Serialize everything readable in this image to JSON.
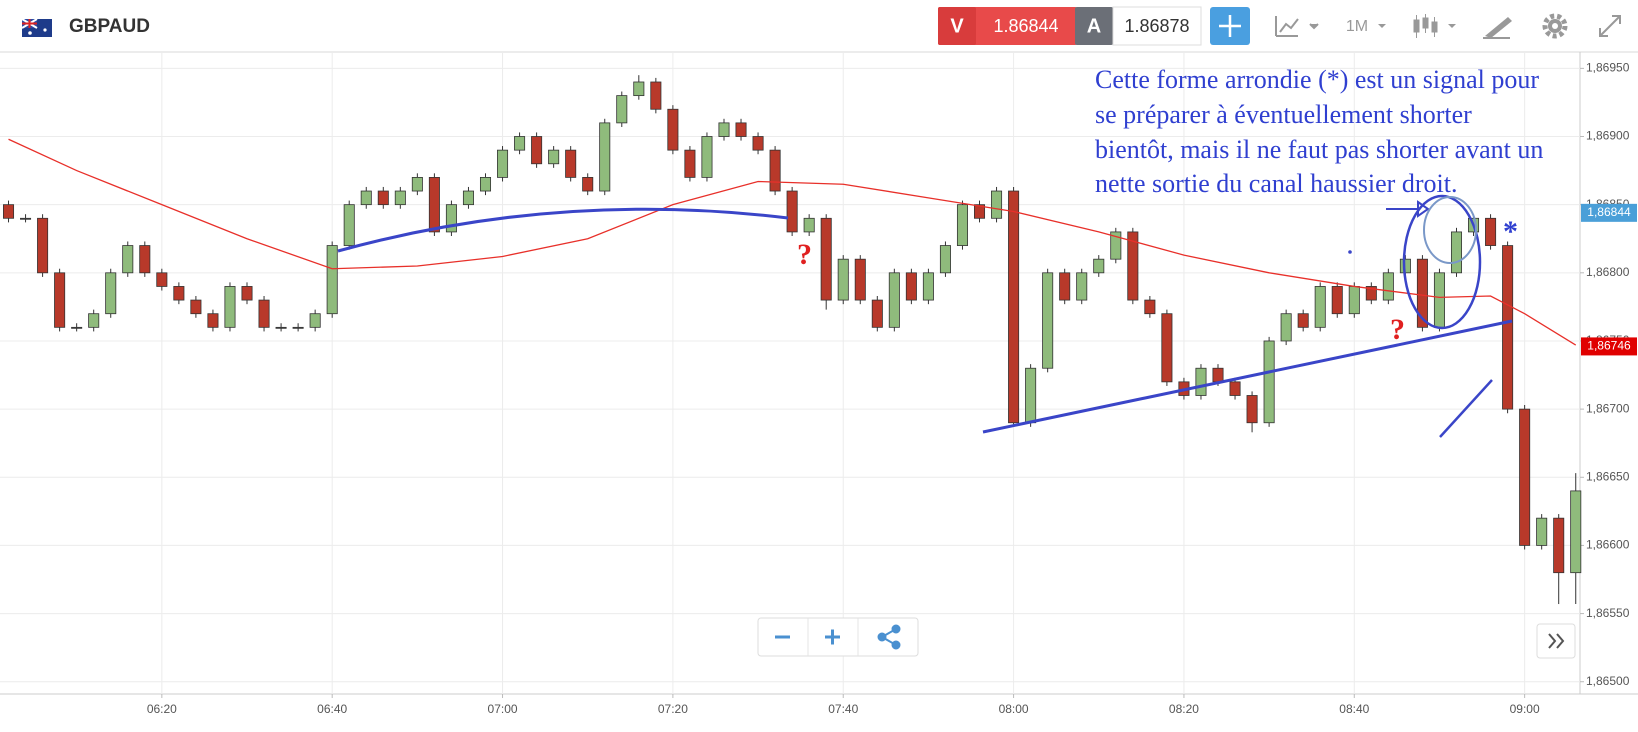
{
  "header": {
    "symbol": "GBPAUD",
    "sell_label": "V",
    "sell_price": 1.86844,
    "buy_label": "A",
    "buy_price": 1.86878,
    "timeframe": "1M"
  },
  "chart_data": {
    "type": "candlestick",
    "x": [
      362,
      364,
      366,
      368,
      370,
      372,
      374,
      376,
      378,
      380,
      382,
      384,
      386,
      388,
      390,
      392,
      394,
      396,
      398,
      400,
      402,
      404,
      406,
      408,
      410,
      412,
      414,
      416,
      418,
      420,
      422,
      424,
      426,
      428,
      430,
      432,
      434,
      436,
      438,
      440,
      442,
      444,
      446,
      448,
      450,
      452,
      454,
      456,
      458,
      460,
      462,
      464,
      466,
      468,
      470,
      472,
      474,
      476,
      478,
      480,
      482,
      484,
      486,
      488,
      490,
      492,
      494,
      496,
      498,
      500,
      502,
      504,
      506,
      508,
      510,
      512,
      514,
      516,
      518,
      520,
      522,
      524,
      526,
      528,
      530,
      532,
      534,
      536,
      538,
      540,
      542,
      544,
      546
    ],
    "open": [
      1.8685,
      1.8684,
      1.8684,
      1.868,
      1.8676,
      1.8676,
      1.8677,
      1.868,
      1.8682,
      1.868,
      1.8679,
      1.8678,
      1.8677,
      1.8676,
      1.8679,
      1.8678,
      1.8676,
      1.8676,
      1.8676,
      1.8677,
      1.8682,
      1.8685,
      1.8686,
      1.8685,
      1.8686,
      1.8687,
      1.8683,
      1.8685,
      1.8686,
      1.8687,
      1.8689,
      1.869,
      1.8688,
      1.8689,
      1.8687,
      1.8686,
      1.8691,
      1.8693,
      1.8694,
      1.8692,
      1.8689,
      1.8687,
      1.869,
      1.8691,
      1.869,
      1.8689,
      1.8686,
      1.8683,
      1.8684,
      1.8678,
      1.8681,
      1.8678,
      1.8676,
      1.868,
      1.8678,
      1.868,
      1.8682,
      1.8685,
      1.8684,
      1.8686,
      1.8669,
      1.8673,
      1.868,
      1.8678,
      1.868,
      1.8681,
      1.8683,
      1.8678,
      1.8677,
      1.8672,
      1.8671,
      1.8673,
      1.8672,
      1.8671,
      1.8669,
      1.8675,
      1.8677,
      1.8676,
      1.8679,
      1.8677,
      1.8679,
      1.8678,
      1.868,
      1.8681,
      1.8676,
      1.868,
      1.8683,
      1.8684,
      1.8682,
      1.867,
      1.866,
      1.8662,
      1.8658
    ],
    "high": [
      1.86853,
      1.86843,
      1.86843,
      1.86803,
      1.86763,
      1.86773,
      1.86803,
      1.86823,
      1.86823,
      1.86803,
      1.86793,
      1.86783,
      1.86773,
      1.86793,
      1.86793,
      1.86783,
      1.86763,
      1.86763,
      1.86773,
      1.86823,
      1.86853,
      1.86863,
      1.86863,
      1.86863,
      1.86873,
      1.86873,
      1.86853,
      1.86863,
      1.86873,
      1.86893,
      1.86903,
      1.86903,
      1.86893,
      1.86893,
      1.86873,
      1.86913,
      1.86933,
      1.86945,
      1.86943,
      1.86923,
      1.86893,
      1.86903,
      1.86913,
      1.86913,
      1.86903,
      1.86893,
      1.86863,
      1.86843,
      1.86843,
      1.86813,
      1.86813,
      1.86783,
      1.86803,
      1.86803,
      1.86803,
      1.86823,
      1.86853,
      1.86853,
      1.86863,
      1.86863,
      1.86733,
      1.86803,
      1.86803,
      1.86803,
      1.86813,
      1.86833,
      1.86833,
      1.86783,
      1.86773,
      1.86723,
      1.86733,
      1.86733,
      1.86723,
      1.86713,
      1.86753,
      1.86773,
      1.86773,
      1.86793,
      1.86793,
      1.86793,
      1.86793,
      1.86803,
      1.86813,
      1.86813,
      1.86803,
      1.86833,
      1.86843,
      1.86843,
      1.86823,
      1.86703,
      1.86623,
      1.86623,
      1.86653
    ],
    "low": [
      1.86837,
      1.86837,
      1.86797,
      1.86757,
      1.86757,
      1.86757,
      1.86767,
      1.86797,
      1.86797,
      1.86787,
      1.86777,
      1.86767,
      1.86757,
      1.86757,
      1.86777,
      1.86757,
      1.86757,
      1.86757,
      1.86757,
      1.86767,
      1.86817,
      1.86847,
      1.86847,
      1.86847,
      1.86857,
      1.86827,
      1.86827,
      1.86847,
      1.86857,
      1.86867,
      1.86887,
      1.86877,
      1.86877,
      1.86867,
      1.86857,
      1.86857,
      1.86907,
      1.86927,
      1.86917,
      1.86887,
      1.86867,
      1.86867,
      1.86897,
      1.86897,
      1.86887,
      1.86857,
      1.86827,
      1.86827,
      1.86773,
      1.86777,
      1.86777,
      1.86757,
      1.86757,
      1.86777,
      1.86777,
      1.86797,
      1.86817,
      1.86837,
      1.86837,
      1.86687,
      1.86687,
      1.86727,
      1.86777,
      1.86777,
      1.86797,
      1.86807,
      1.86777,
      1.86767,
      1.86717,
      1.86707,
      1.86707,
      1.86717,
      1.86707,
      1.86683,
      1.86687,
      1.86747,
      1.86757,
      1.86757,
      1.86767,
      1.86767,
      1.86777,
      1.86777,
      1.86797,
      1.86757,
      1.86757,
      1.86797,
      1.86827,
      1.86817,
      1.86697,
      1.86597,
      1.86597,
      1.86557,
      1.86557
    ],
    "close": [
      1.8684,
      1.8684,
      1.868,
      1.8676,
      1.8676,
      1.8677,
      1.868,
      1.8682,
      1.868,
      1.8679,
      1.8678,
      1.8677,
      1.8676,
      1.8679,
      1.8678,
      1.8676,
      1.8676,
      1.8676,
      1.8677,
      1.8682,
      1.8685,
      1.8686,
      1.8685,
      1.8686,
      1.8687,
      1.8683,
      1.8685,
      1.8686,
      1.8687,
      1.8689,
      1.869,
      1.8688,
      1.8689,
      1.8687,
      1.8686,
      1.8691,
      1.8693,
      1.8694,
      1.8692,
      1.8689,
      1.8687,
      1.869,
      1.8691,
      1.869,
      1.8689,
      1.8686,
      1.8683,
      1.8684,
      1.8678,
      1.8681,
      1.8678,
      1.8676,
      1.868,
      1.8678,
      1.868,
      1.8682,
      1.8685,
      1.8684,
      1.8686,
      1.8669,
      1.8673,
      1.868,
      1.8678,
      1.868,
      1.8681,
      1.8683,
      1.8678,
      1.8677,
      1.8672,
      1.8671,
      1.8673,
      1.8672,
      1.8671,
      1.8669,
      1.8675,
      1.8677,
      1.8676,
      1.8679,
      1.8677,
      1.8679,
      1.8678,
      1.868,
      1.8681,
      1.8676,
      1.868,
      1.8683,
      1.8684,
      1.8682,
      1.867,
      1.866,
      1.8662,
      1.8658,
      1.8664
    ],
    "up_color": "#8fbb7c",
    "down_color": "#b8392a",
    "moving_average": {
      "color": "#e8302a",
      "x": [
        362,
        370,
        380,
        390,
        400,
        410,
        420,
        430,
        440,
        450,
        460,
        470,
        480,
        490,
        500,
        510,
        520,
        530,
        536,
        540,
        546
      ],
      "values": [
        1.86898,
        1.86875,
        1.8685,
        1.86825,
        1.86803,
        1.86805,
        1.86812,
        1.86825,
        1.8685,
        1.86867,
        1.86865,
        1.86855,
        1.86845,
        1.8683,
        1.86813,
        1.868,
        1.8679,
        1.86782,
        1.86783,
        1.8677,
        1.86747
      ]
    },
    "xlim": [
      361,
      546.5
    ],
    "xticks": [
      {
        "value": 380,
        "label": "06:20"
      },
      {
        "value": 400,
        "label": "06:40"
      },
      {
        "value": 420,
        "label": "07:00"
      },
      {
        "value": 440,
        "label": "07:20"
      },
      {
        "value": 460,
        "label": "07:40"
      },
      {
        "value": 480,
        "label": "08:00"
      },
      {
        "value": 500,
        "label": "08:20"
      },
      {
        "value": 520,
        "label": "08:40"
      },
      {
        "value": 540,
        "label": "09:00"
      }
    ],
    "ylim": [
      1.86491,
      1.86962
    ],
    "yticks": [
      {
        "value": 1.8695,
        "label": "1,86950"
      },
      {
        "value": 1.869,
        "label": "1,86900"
      },
      {
        "value": 1.8685,
        "label": "1,86850"
      },
      {
        "value": 1.868,
        "label": "1,86800"
      },
      {
        "value": 1.8675,
        "label": "1,86750"
      },
      {
        "value": 1.867,
        "label": "1,86700"
      },
      {
        "value": 1.8665,
        "label": "1,86650"
      },
      {
        "value": 1.866,
        "label": "1,86600"
      },
      {
        "value": 1.8655,
        "label": "1,86550"
      },
      {
        "value": 1.865,
        "label": "1,86500"
      }
    ],
    "grid": true,
    "price_labels": [
      {
        "value": 1.86844,
        "label": "1,86844",
        "color": "#4a9fd8"
      },
      {
        "value": 1.86746,
        "label": "1,86746",
        "color": "#e00000"
      }
    ],
    "annotations": {
      "note": [
        "Cette forme arrondie (*) est un signal pour",
        "se préparer à éventuellement shorter",
        "bientôt, mais il ne faut pas shorter avant un",
        "nette sortie du canal haussier droit."
      ],
      "question_1": "?",
      "question_2": "?",
      "star": "*"
    }
  }
}
